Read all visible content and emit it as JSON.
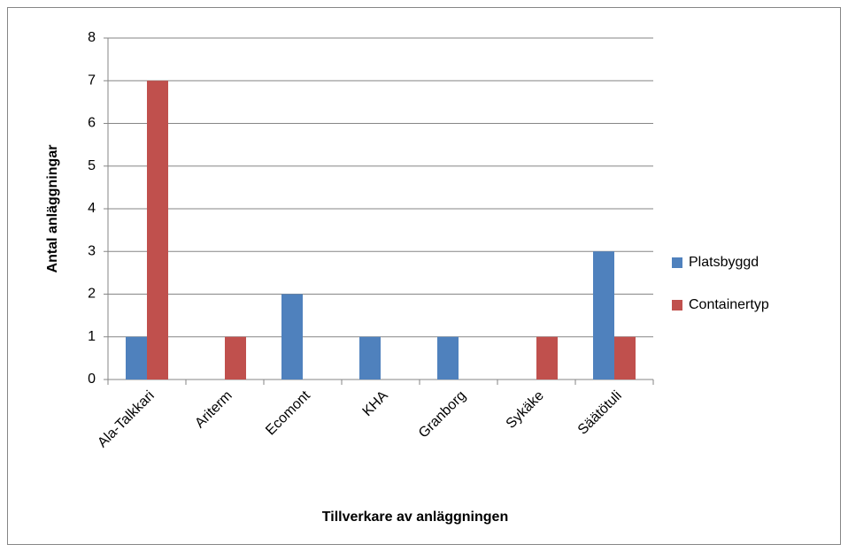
{
  "chart_data": {
    "type": "bar",
    "xlabel": "Tillverkare av anläggningen",
    "ylabel": "Antal anläggningar",
    "categories": [
      "Ala-Talkkari",
      "Ariterm",
      "Ecomont",
      "KHA",
      "Granborg",
      "Sykäke",
      "Säätötuli"
    ],
    "series": [
      {
        "name": "Platsbyggd",
        "color": "#4f81bd",
        "values": [
          1,
          0,
          2,
          1,
          1,
          0,
          3
        ]
      },
      {
        "name": "Containertyp",
        "color": "#c0504d",
        "values": [
          7,
          1,
          0,
          0,
          0,
          1,
          1
        ]
      }
    ],
    "ylim": [
      0,
      8
    ],
    "yticks": [
      0,
      1,
      2,
      3,
      4,
      5,
      6,
      7,
      8
    ],
    "grid": true,
    "legend": "right"
  }
}
